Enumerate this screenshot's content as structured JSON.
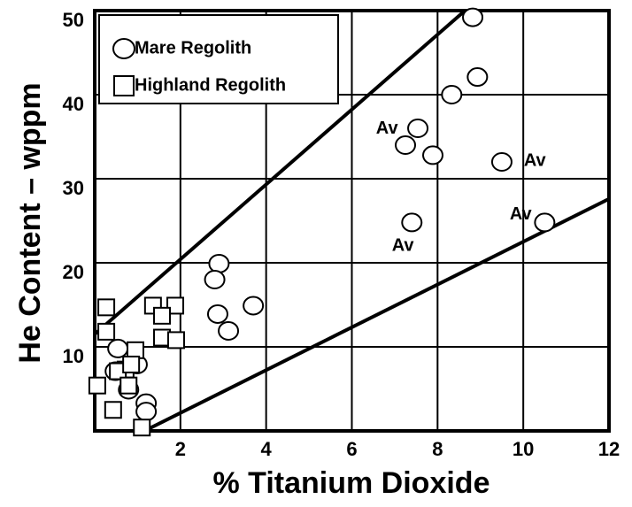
{
  "chart_data": {
    "type": "scatter",
    "x_label": "% Titanium Dioxide",
    "y_label": "He Content – wppm",
    "xlim": [
      0,
      12
    ],
    "ylim": [
      0,
      50
    ],
    "xticks": [
      2,
      4,
      6,
      8,
      10,
      12
    ],
    "yticks": [
      10,
      20,
      30,
      40,
      50
    ],
    "grid": true,
    "legend": "upper left",
    "series": [
      {
        "name": "Mare Regolith",
        "marker": "circle",
        "color": "#000000",
        "x": [
          8.82,
          8.93,
          8.33,
          7.54,
          7.25,
          7.89,
          9.5,
          7.4,
          10.5,
          2.9,
          2.8,
          2.87,
          3.12,
          3.7,
          0.54,
          0.99,
          0.48,
          0.79,
          1.2,
          1.2
        ],
        "values": [
          49.2,
          42.1,
          40.0,
          36.0,
          34.0,
          32.8,
          32.0,
          24.8,
          24.8,
          19.9,
          18.0,
          13.9,
          11.9,
          14.9,
          9.8,
          7.9,
          7.1,
          4.9,
          3.3,
          2.3
        ]
      },
      {
        "name": "Highland Regolith",
        "marker": "square",
        "color": "#000000",
        "x": [
          0.27,
          1.36,
          1.88,
          1.57,
          1.57,
          1.9,
          0.27,
          0.95,
          0.72,
          0.54,
          0.79,
          0.06,
          0.43,
          1.1,
          0.85
        ],
        "values": [
          14.7,
          14.9,
          14.9,
          13.7,
          11.1,
          10.8,
          11.8,
          9.6,
          7.3,
          7.1,
          5.4,
          5.4,
          2.5,
          0.4,
          7.9
        ]
      }
    ],
    "lines": [
      {
        "x": [
          0,
          8.64
        ],
        "y": [
          11.5,
          50
        ]
      },
      {
        "x": [
          1.16,
          12
        ],
        "y": [
          0,
          27.6
        ]
      }
    ],
    "annotations": [
      {
        "text": "Av",
        "x": 6.82,
        "y": 35.9
      },
      {
        "text": "Av",
        "x": 10.27,
        "y": 32.1
      },
      {
        "text": "Av",
        "x": 7.19,
        "y": 22.0
      },
      {
        "text": "Av",
        "x": 9.94,
        "y": 25.7
      }
    ]
  }
}
